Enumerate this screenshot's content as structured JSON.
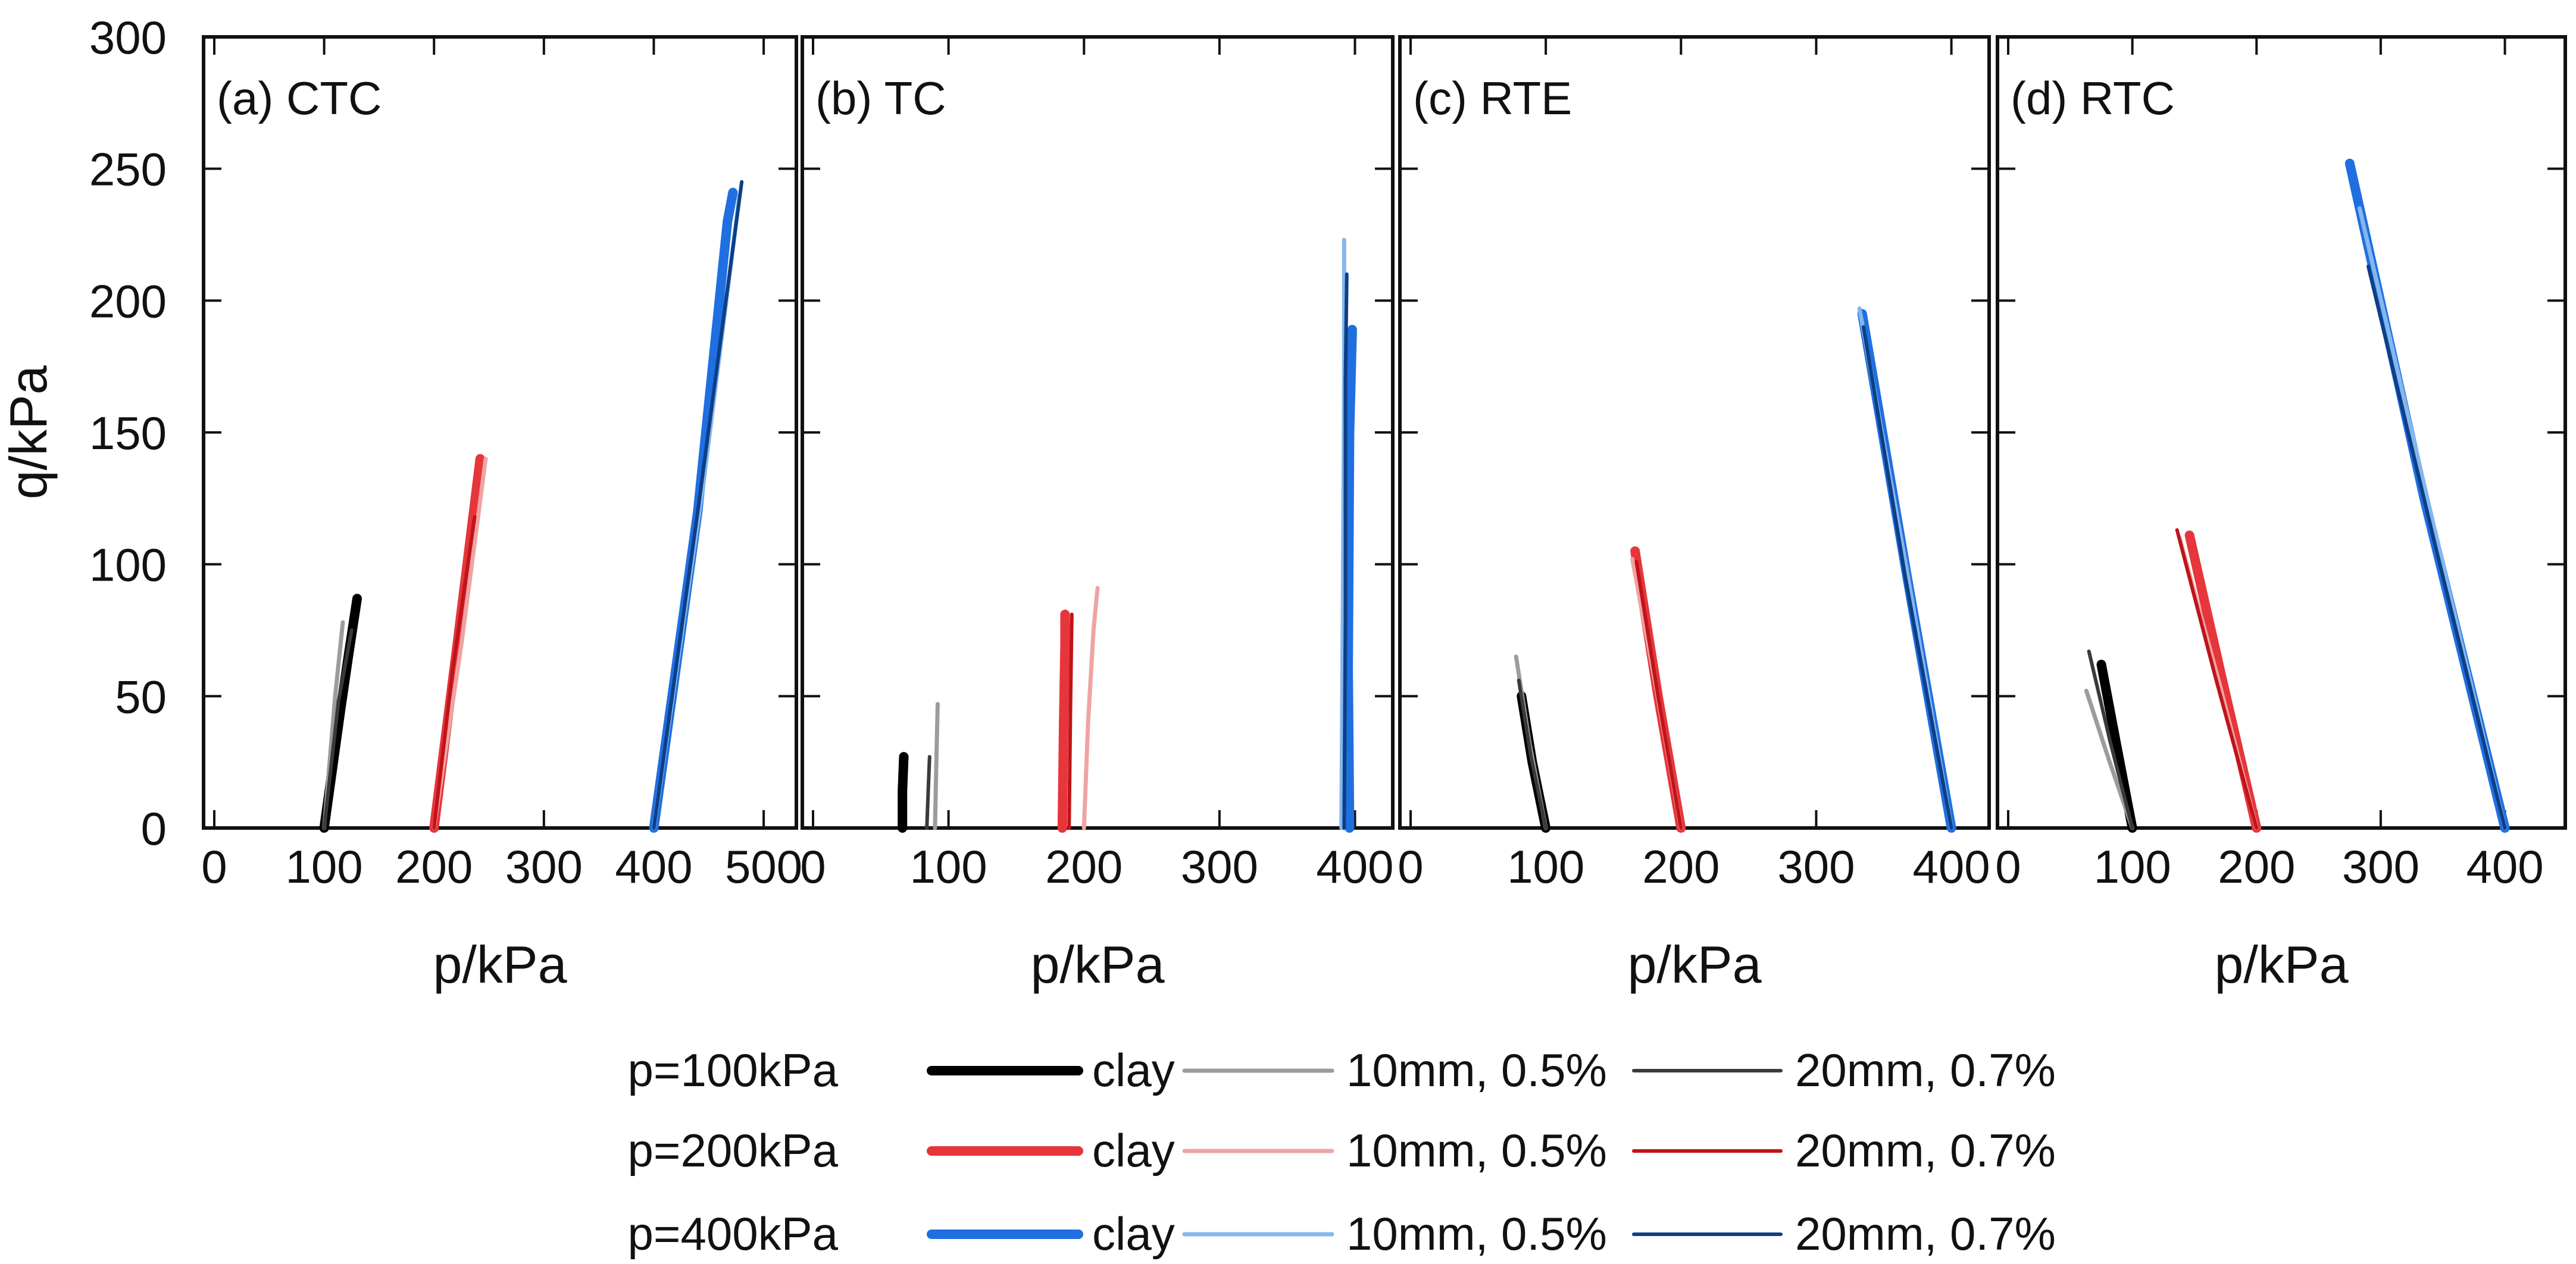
{
  "chart_data": {
    "type": "line",
    "colors": {
      "p100": {
        "clay": "#000000",
        "10mm, 0.5%": "#9c9c9c",
        "20mm, 0.7%": "#3a3a3a"
      },
      "p200": {
        "clay": "#e6363b",
        "10mm, 0.5%": "#f0a3a3",
        "20mm, 0.7%": "#c0141a"
      },
      "p400": {
        "clay": "#1f6fe0",
        "10mm, 0.5%": "#85b6ee",
        "20mm, 0.7%": "#0d3f86"
      }
    },
    "y_axis": {
      "label": "q/kPa",
      "ylim": [
        0,
        300
      ],
      "ticks": [
        0,
        50,
        100,
        150,
        200,
        250,
        300
      ]
    },
    "legend": {
      "rows": [
        {
          "key": "p100",
          "label": "p=100kPa"
        },
        {
          "key": "p200",
          "label": "p=200kPa"
        },
        {
          "key": "p400",
          "label": "p=400kPa"
        }
      ],
      "columns": [
        "clay",
        "10mm, 0.5%",
        "20mm, 0.7%"
      ]
    },
    "panels": [
      {
        "title": "(a) CTC",
        "xlabel": "p/kPa",
        "xlim": [
          0,
          520
        ],
        "xticks": [
          0,
          100,
          200,
          300,
          400,
          500
        ],
        "series": [
          {
            "group": "p100",
            "material": "clay",
            "x": [
              100,
              115,
              122,
              130
            ],
            "y": [
              0,
              45,
              65,
              87
            ]
          },
          {
            "group": "p100",
            "material": "10mm, 0.5%",
            "x": [
              100,
              110,
              117
            ],
            "y": [
              0,
              50,
              78
            ]
          },
          {
            "group": "p100",
            "material": "20mm, 0.7%",
            "x": [
              100,
              113,
              125
            ],
            "y": [
              0,
              48,
              75
            ]
          },
          {
            "group": "p200",
            "material": "clay",
            "x": [
              200,
              220,
              242
            ],
            "y": [
              0,
              66,
              140
            ]
          },
          {
            "group": "p200",
            "material": "10mm, 0.5%",
            "x": [
              200,
              225,
              247
            ],
            "y": [
              0,
              70,
              140
            ]
          },
          {
            "group": "p200",
            "material": "20mm, 0.7%",
            "x": [
              200,
              217,
              237
            ],
            "y": [
              0,
              60,
              118
            ]
          },
          {
            "group": "p400",
            "material": "clay",
            "x": [
              400,
              440,
              467,
              472
            ],
            "y": [
              0,
              120,
              230,
              241
            ]
          },
          {
            "group": "p400",
            "material": "10mm, 0.5%",
            "x": [
              400,
              445,
              478
            ],
            "y": [
              0,
              130,
              240
            ]
          },
          {
            "group": "p400",
            "material": "20mm, 0.7%",
            "x": [
              400,
              440,
              480
            ],
            "y": [
              0,
              120,
              245
            ]
          }
        ]
      },
      {
        "title": "(b) TC",
        "xlabel": "p/kPa",
        "xlim": [
          0,
          420
        ],
        "xticks": [
          0,
          100,
          200,
          300,
          400
        ],
        "series": [
          {
            "group": "p100",
            "material": "clay",
            "x": [
              66,
              66,
              67
            ],
            "y": [
              0,
              14,
              27
            ]
          },
          {
            "group": "p100",
            "material": "10mm, 0.5%",
            "x": [
              90,
              91,
              92
            ],
            "y": [
              0,
              24,
              47
            ]
          },
          {
            "group": "p100",
            "material": "20mm, 0.7%",
            "x": [
              84,
              85,
              86
            ],
            "y": [
              0,
              14,
              27
            ]
          },
          {
            "group": "p200",
            "material": "clay",
            "x": [
              184,
              185,
              186,
              186
            ],
            "y": [
              0,
              40,
              70,
              81
            ]
          },
          {
            "group": "p200",
            "material": "10mm, 0.5%",
            "x": [
              200,
              203,
              207,
              210
            ],
            "y": [
              0,
              40,
              75,
              91
            ]
          },
          {
            "group": "p200",
            "material": "20mm, 0.7%",
            "x": [
              189,
              190,
              191
            ],
            "y": [
              0,
              45,
              81
            ]
          },
          {
            "group": "p400",
            "material": "clay",
            "x": [
              396,
              395,
              396,
              398
            ],
            "y": [
              0,
              60,
              150,
              189
            ]
          },
          {
            "group": "p400",
            "material": "10mm, 0.5%",
            "x": [
              390,
              391,
              392,
              392
            ],
            "y": [
              0,
              80,
              170,
              223
            ]
          },
          {
            "group": "p400",
            "material": "20mm, 0.7%",
            "x": [
              392,
              393,
              393,
              394
            ],
            "y": [
              0,
              80,
              170,
              210
            ]
          }
        ]
      },
      {
        "title": "(c) RTE",
        "xlabel": "p/kPa",
        "xlim": [
          0,
          420
        ],
        "xticks": [
          0,
          100,
          200,
          300,
          400
        ],
        "series": [
          {
            "group": "p100",
            "material": "clay",
            "x": [
              100,
              90,
              82
            ],
            "y": [
              0,
              25,
              50
            ]
          },
          {
            "group": "p100",
            "material": "10mm, 0.5%",
            "x": [
              100,
              88,
              78
            ],
            "y": [
              0,
              32,
              65
            ]
          },
          {
            "group": "p100",
            "material": "20mm, 0.7%",
            "x": [
              100,
              89,
              80
            ],
            "y": [
              0,
              27,
              56
            ]
          },
          {
            "group": "p200",
            "material": "clay",
            "x": [
              200,
              183,
              166
            ],
            "y": [
              0,
              50,
              105
            ]
          },
          {
            "group": "p200",
            "material": "10mm, 0.5%",
            "x": [
              200,
              182,
              164
            ],
            "y": [
              0,
              52,
              102
            ]
          },
          {
            "group": "p200",
            "material": "20mm, 0.7%",
            "x": [
              200,
              183,
              167
            ],
            "y": [
              0,
              50,
              101
            ]
          },
          {
            "group": "p400",
            "material": "clay",
            "x": [
              400,
              367,
              334
            ],
            "y": [
              0,
              96,
              195
            ]
          },
          {
            "group": "p400",
            "material": "10mm, 0.5%",
            "x": [
              400,
              367,
              332
            ],
            "y": [
              0,
              98,
              197
            ]
          },
          {
            "group": "p400",
            "material": "20mm, 0.7%",
            "x": [
              400,
              366,
              335
            ],
            "y": [
              0,
              95,
              190
            ]
          }
        ]
      },
      {
        "title": "(d) RTC",
        "xlabel": "p/kPa",
        "xlim": [
          0,
          440
        ],
        "xticks": [
          0,
          100,
          200,
          300,
          400
        ],
        "series": [
          {
            "group": "p100",
            "material": "clay",
            "x": [
              100,
              87,
              75
            ],
            "y": [
              0,
              32,
              62
            ]
          },
          {
            "group": "p100",
            "material": "10mm, 0.5%",
            "x": [
              100,
              81,
              63
            ],
            "y": [
              0,
              26,
              52
            ]
          },
          {
            "group": "p100",
            "material": "20mm, 0.7%",
            "x": [
              100,
              82,
              65
            ],
            "y": [
              0,
              33,
              67
            ]
          },
          {
            "group": "p200",
            "material": "clay",
            "x": [
              200,
              173,
              146
            ],
            "y": [
              0,
              55,
              111
            ]
          },
          {
            "group": "p200",
            "material": "10mm, 0.5%",
            "x": [
              200,
              170,
              138
            ],
            "y": [
              0,
              55,
              110
            ]
          },
          {
            "group": "p200",
            "material": "20mm, 0.7%",
            "x": [
              200,
              167,
              136
            ],
            "y": [
              0,
              57,
              113
            ]
          },
          {
            "group": "p400",
            "material": "clay",
            "x": [
              400,
              335,
              275
            ],
            "y": [
              0,
              125,
              252
            ]
          },
          {
            "group": "p400",
            "material": "10mm, 0.5%",
            "x": [
              400,
              340,
              283
            ],
            "y": [
              0,
              120,
              235
            ]
          },
          {
            "group": "p400",
            "material": "20mm, 0.7%",
            "x": [
              400,
              345,
              290
            ],
            "y": [
              0,
              105,
              213
            ]
          }
        ]
      }
    ]
  }
}
